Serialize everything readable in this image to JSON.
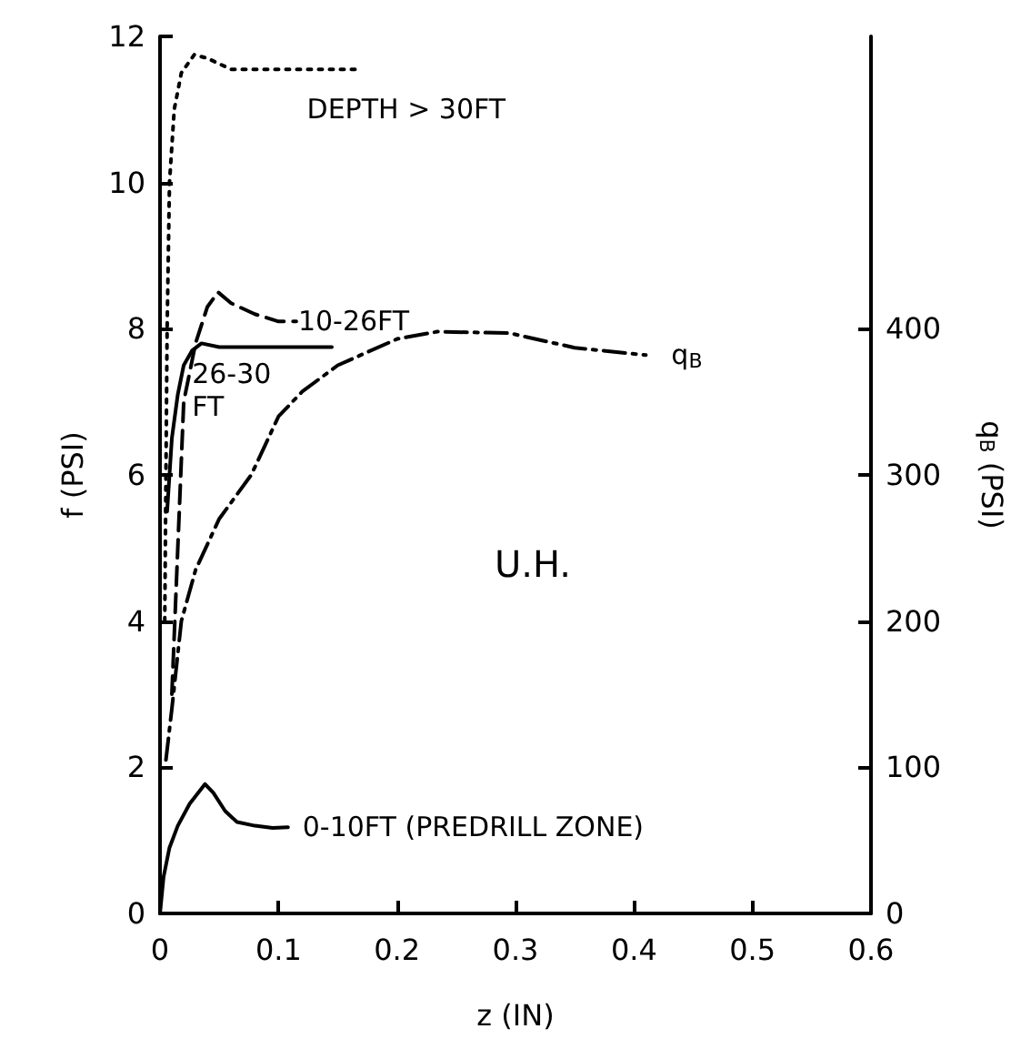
{
  "chart_data": {
    "type": "line",
    "xlabel": "z (IN)",
    "ylabel": "f (PSI)",
    "y2label": "q$_{B}$ (PSI)",
    "xlim": [
      0,
      0.6
    ],
    "xticks": [
      0,
      0.1,
      0.2,
      0.3,
      0.4,
      0.5,
      0.6
    ],
    "ylim": [
      0,
      12
    ],
    "yticks": [
      0,
      2,
      4,
      6,
      8,
      10,
      12
    ],
    "y2lim": [
      0,
      600
    ],
    "y2ticks": [
      0,
      100,
      200,
      300,
      400
    ],
    "grid": false,
    "marker": "none",
    "annotations": [
      "U.H."
    ],
    "series": [
      {
        "name": "DEPTH > 30FT",
        "color": "#000000",
        "line_style": "dotted",
        "x": [
          0.004,
          0.006,
          0.008,
          0.012,
          0.018,
          0.029,
          0.04,
          0.06,
          0.09,
          0.13,
          0.17
        ],
        "values": [
          4,
          8,
          10,
          11,
          11.5,
          11.75,
          11.7,
          11.55,
          11.55,
          11.55,
          11.55
        ]
      },
      {
        "name": "10-26FT",
        "color": "#000000",
        "line_style": "dashed",
        "x": [
          0.01,
          0.015,
          0.02,
          0.03,
          0.04,
          0.049,
          0.06,
          0.08,
          0.1,
          0.115
        ],
        "values": [
          3,
          5,
          7,
          7.8,
          8.3,
          8.5,
          8.35,
          8.2,
          8.1,
          8.1
        ]
      },
      {
        "name": "26-30\nFT",
        "color": "#000000",
        "line_style": "solid",
        "x": [
          0.006,
          0.01,
          0.015,
          0.02,
          0.027,
          0.035,
          0.05,
          0.08,
          0.11,
          0.145
        ],
        "values": [
          5.5,
          6.5,
          7.1,
          7.5,
          7.7,
          7.8,
          7.75,
          7.75,
          7.75,
          7.75
        ]
      },
      {
        "name": "0-10FT (PREDRILL ZONE)",
        "color": "#000000",
        "line_style": "solid",
        "x": [
          0,
          0.003,
          0.008,
          0.015,
          0.025,
          0.038,
          0.045,
          0.055,
          0.065,
          0.08,
          0.095,
          0.108
        ],
        "values": [
          0,
          0.5,
          0.9,
          1.2,
          1.5,
          1.77,
          1.65,
          1.4,
          1.25,
          1.2,
          1.17,
          1.18
        ]
      },
      {
        "name": "q$_{B}$",
        "axis": "y2",
        "color": "#000000",
        "line_style": "dashdot",
        "x": [
          0.005,
          0.01,
          0.018,
          0.03,
          0.05,
          0.077,
          0.1,
          0.12,
          0.15,
          0.2,
          0.234,
          0.295,
          0.35,
          0.41
        ],
        "values": [
          105,
          140,
          200,
          235,
          270,
          300,
          340,
          357,
          375,
          393,
          398,
          397,
          387,
          382
        ]
      }
    ]
  }
}
